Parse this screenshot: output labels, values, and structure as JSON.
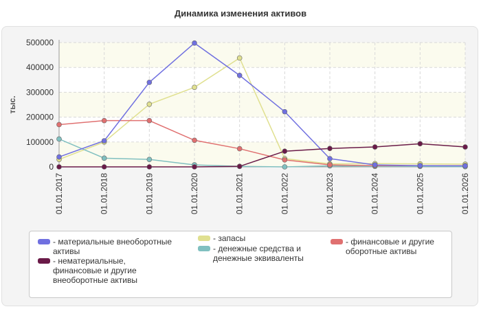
{
  "chart_data": {
    "type": "line",
    "title": "Динамика изменения активов",
    "ylabel": "тыс.",
    "xlabel": "",
    "ylim": [
      0,
      500000
    ],
    "yticks": [
      "0",
      "100000",
      "200000",
      "300000",
      "400000",
      "500000"
    ],
    "categories": [
      "01.01.2017",
      "01.01.2018",
      "01.01.2019",
      "01.01.2020",
      "01.01.2021",
      "01.01.2022",
      "01.01.2023",
      "01.01.2024",
      "01.01.2025",
      "01.01.2026"
    ],
    "grid": true,
    "legend_position": "bottom",
    "series": [
      {
        "name": "- материальные внеоборотные\nактивы",
        "color": "#7070e0",
        "values": [
          40000,
          105000,
          340000,
          498000,
          368000,
          222000,
          33000,
          8000,
          5000,
          4000
        ]
      },
      {
        "name": "- запасы",
        "color": "#e0e090",
        "values": [
          30000,
          100000,
          252000,
          320000,
          438000,
          33000,
          12000,
          13000,
          12000,
          11000
        ]
      },
      {
        "name": "- финансовые и другие\nоборотные активы",
        "color": "#e07070",
        "values": [
          170000,
          186000,
          186000,
          107000,
          73000,
          28000,
          8000,
          5000,
          5000,
          5000
        ]
      },
      {
        "name": "- нематериальные,\nфинансовые и другие\nвнеоборотные активы",
        "color": "#6a1a48",
        "values": [
          0,
          0,
          0,
          0,
          2000,
          63000,
          74000,
          80000,
          93000,
          80000
        ]
      },
      {
        "name": "- денежные средства и\nденежные эквиваленты",
        "color": "#80c0c0",
        "values": [
          112000,
          35000,
          30000,
          8000,
          2000,
          0,
          4000,
          2000,
          2000,
          1000
        ]
      }
    ]
  }
}
